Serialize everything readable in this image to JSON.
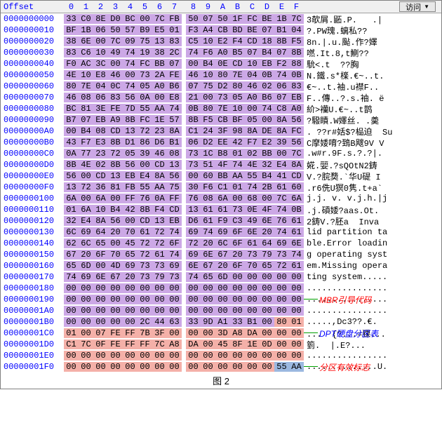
{
  "header": {
    "offset_label": "Offset",
    "cols": [
      "0",
      "1",
      "2",
      "3",
      "4",
      "5",
      "6",
      "7",
      "8",
      "9",
      "A",
      "B",
      "C",
      "D",
      "E",
      "F"
    ],
    "visit_label": "访问"
  },
  "colors": {
    "purple": "#cca8e6",
    "pink": "#f4b0a8",
    "blue": "#9bb8e0"
  },
  "annotations": {
    "a1": {
      "text": "MBR引导代码",
      "color": "#ff0000"
    },
    "a2": {
      "text": "DPT硬盘分区表",
      "color": "#0000ff"
    },
    "a3": {
      "text": "分区有效标志",
      "color": "#ff0000"
    }
  },
  "caption": "图 2",
  "rows": [
    {
      "o": "0000000000",
      "h": [
        "33",
        "C0",
        "8E",
        "D0",
        "BC",
        "00",
        "7C",
        "FB",
        "50",
        "07",
        "50",
        "1F",
        "FC",
        "BE",
        "1B",
        "7C"
      ],
      "a": "3欹屑.鼫.P.   .|",
      "bg": "purple"
    },
    {
      "o": "0000000010",
      "h": [
        "BF",
        "1B",
        "06",
        "50",
        "57",
        "B9",
        "E5",
        "01",
        "F3",
        "A4",
        "CB",
        "BD",
        "BE",
        "07",
        "B1",
        "04"
      ],
      "a": "?.PW瑰.螭私??",
      "bg": "purple"
    },
    {
      "o": "0000000020",
      "h": [
        "38",
        "6E",
        "00",
        "7C",
        "09",
        "75",
        "13",
        "83",
        "C5",
        "10",
        "E2",
        "F4",
        "CD",
        "18",
        "8B",
        "F5"
      ],
      "a": "8n.|.u.颭.作?嬕",
      "bg": "purple"
    },
    {
      "o": "0000000030",
      "h": [
        "83",
        "C6",
        "10",
        "49",
        "74",
        "19",
        "38",
        "2C",
        "74",
        "F6",
        "A0",
        "B5",
        "07",
        "B4",
        "07",
        "8B"
      ],
      "a": "嘫.It.8,t鰂??",
      "bg": "purple"
    },
    {
      "o": "0000000040",
      "h": [
        "F0",
        "AC",
        "3C",
        "00",
        "74",
        "FC",
        "BB",
        "07",
        "00",
        "B4",
        "0E",
        "CD",
        "10",
        "EB",
        "F2",
        "88"
      ],
      "a": "馻<.t  ??胸",
      "bg": "purple"
    },
    {
      "o": "0000000050",
      "h": [
        "4E",
        "10",
        "E8",
        "46",
        "00",
        "73",
        "2A",
        "FE",
        "46",
        "10",
        "80",
        "7E",
        "04",
        "0B",
        "74",
        "0B"
      ],
      "a": "N.鐵.s*檪.€~..t.",
      "bg": "purple"
    },
    {
      "o": "0000000060",
      "h": [
        "80",
        "7E",
        "04",
        "0C",
        "74",
        "05",
        "A0",
        "B6",
        "07",
        "75",
        "D2",
        "80",
        "46",
        "02",
        "06",
        "83"
      ],
      "a": "€~..t.袖.u襟F..",
      "bg": "purple"
    },
    {
      "o": "0000000070",
      "h": [
        "46",
        "08",
        "06",
        "83",
        "56",
        "0A",
        "00",
        "E8",
        "21",
        "00",
        "73",
        "05",
        "A0",
        "B6",
        "07",
        "EB"
      ],
      "a": "F..傳..?.s.袖. ë",
      "bg": "purple"
    },
    {
      "o": "0000000080",
      "h": [
        "BC",
        "81",
        "3E",
        "FE",
        "7D",
        "55",
        "AA",
        "74",
        "0B",
        "80",
        "7E",
        "10",
        "00",
        "74",
        "C8",
        "A0"
      ],
      "a": "紒>襽U.€~..t鹊",
      "bg": "purple"
    },
    {
      "o": "0000000090",
      "h": [
        "B7",
        "07",
        "EB",
        "A9",
        "8B",
        "FC",
        "1E",
        "57",
        "8B",
        "F5",
        "CB",
        "BF",
        "05",
        "00",
        "8A",
        "56"
      ],
      "a": "?驋瞔.W嬕丝. .羮",
      "bg": "purple"
    },
    {
      "o": "00000000A0",
      "h": [
        "00",
        "B4",
        "08",
        "CD",
        "13",
        "72",
        "23",
        "8A",
        "C1",
        "24",
        "3F",
        "98",
        "8A",
        "DE",
        "8A",
        "FC"
      ],
      "a": ". ??r#姡$?榀迫  Su",
      "bg": "purple"
    },
    {
      "o": "00000000B0",
      "h": [
        "43",
        "F7",
        "E3",
        "8B",
        "D1",
        "86",
        "D6",
        "B1",
        "06",
        "D2",
        "EE",
        "42",
        "F7",
        "E2",
        "39",
        "56"
      ],
      "a": "C摩婑唷?鵄B飕9V V",
      "bg": "purple"
    },
    {
      "o": "00000000C0",
      "h": [
        "0A",
        "77",
        "23",
        "72",
        "05",
        "39",
        "46",
        "08",
        "73",
        "1C",
        "B8",
        "01",
        "02",
        "BB",
        "00",
        "7C"
      ],
      "a": ".w#r.9F.s.?.?|.",
      "bg": "purple"
    },
    {
      "o": "00000000D0",
      "h": [
        "8B",
        "4E",
        "02",
        "8B",
        "56",
        "00",
        "CD",
        "13",
        "73",
        "51",
        "4F",
        "74",
        "4E",
        "32",
        "E4",
        "8A"
      ],
      "a": "婲.婯.?sQOtN2鋳",
      "bg": "purple"
    },
    {
      "o": "00000000E0",
      "h": [
        "56",
        "00",
        "CD",
        "13",
        "EB",
        "E4",
        "8A",
        "56",
        "00",
        "60",
        "BB",
        "AA",
        "55",
        "B4",
        "41",
        "CD"
      ],
      "a": "V.?脘奦.`华U碮 I",
      "bg": "purple"
    },
    {
      "o": "00000000F0",
      "h": [
        "13",
        "72",
        "36",
        "81",
        "FB",
        "55",
        "AA",
        "75",
        "30",
        "F6",
        "C1",
        "01",
        "74",
        "2B",
        "61",
        "60"
      ],
      "a": ".r6侁U猽0隽.t+a`",
      "bg": "purple"
    },
    {
      "o": "0000000100",
      "h": [
        "6A",
        "00",
        "6A",
        "00",
        "FF",
        "76",
        "0A",
        "FF",
        "76",
        "08",
        "6A",
        "00",
        "68",
        "00",
        "7C",
        "6A"
      ],
      "a": "j.j. v. v.j.h.|j",
      "bg": "purple"
    },
    {
      "o": "0000000110",
      "h": [
        "01",
        "6A",
        "10",
        "B4",
        "42",
        "8B",
        "F4",
        "CD",
        "13",
        "61",
        "61",
        "73",
        "0E",
        "4F",
        "74",
        "0B"
      ],
      "a": ".j.碽婑?aas.Ot.",
      "bg": "purple"
    },
    {
      "o": "0000000120",
      "h": [
        "32",
        "E4",
        "8A",
        "56",
        "00",
        "CD",
        "13",
        "EB",
        "D6",
        "61",
        "F9",
        "C3",
        "49",
        "6E",
        "76",
        "61"
      ],
      "a": "2鋳V.?胚a  Inva",
      "bg": "purple"
    },
    {
      "o": "0000000130",
      "h": [
        "6C",
        "69",
        "64",
        "20",
        "70",
        "61",
        "72",
        "74",
        "69",
        "74",
        "69",
        "6F",
        "6E",
        "20",
        "74",
        "61"
      ],
      "a": "lid partition ta",
      "bg": "purple"
    },
    {
      "o": "0000000140",
      "h": [
        "62",
        "6C",
        "65",
        "00",
        "45",
        "72",
        "72",
        "6F",
        "72",
        "20",
        "6C",
        "6F",
        "61",
        "64",
        "69",
        "6E"
      ],
      "a": "ble.Error loadin",
      "bg": "purple"
    },
    {
      "o": "0000000150",
      "h": [
        "67",
        "20",
        "6F",
        "70",
        "65",
        "72",
        "61",
        "74",
        "69",
        "6E",
        "67",
        "20",
        "73",
        "79",
        "73",
        "74"
      ],
      "a": "g operating syst",
      "bg": "purple"
    },
    {
      "o": "0000000160",
      "h": [
        "65",
        "6D",
        "00",
        "4D",
        "69",
        "73",
        "73",
        "69",
        "6E",
        "67",
        "20",
        "6F",
        "70",
        "65",
        "72",
        "61"
      ],
      "a": "em.Missing opera",
      "bg": "purple"
    },
    {
      "o": "0000000170",
      "h": [
        "74",
        "69",
        "6E",
        "67",
        "20",
        "73",
        "79",
        "73",
        "74",
        "65",
        "6D",
        "00",
        "00",
        "00",
        "00",
        "00"
      ],
      "a": "ting system.....",
      "bg": "purple"
    },
    {
      "o": "0000000180",
      "h": [
        "00",
        "00",
        "00",
        "00",
        "00",
        "00",
        "00",
        "00",
        "00",
        "00",
        "00",
        "00",
        "00",
        "00",
        "00",
        "00"
      ],
      "a": "................",
      "bg": "purple"
    },
    {
      "o": "0000000190",
      "h": [
        "00",
        "00",
        "00",
        "00",
        "00",
        "00",
        "00",
        "00",
        "00",
        "00",
        "00",
        "00",
        "00",
        "00",
        "00",
        "00"
      ],
      "a": "................",
      "bg": "purple"
    },
    {
      "o": "00000001A0",
      "h": [
        "00",
        "00",
        "00",
        "00",
        "00",
        "00",
        "00",
        "00",
        "00",
        "00",
        "00",
        "00",
        "00",
        "00",
        "00",
        "00"
      ],
      "a": "................",
      "bg": "purple"
    },
    {
      "o": "00000001B0",
      "h": [
        "00",
        "00",
        "00",
        "00",
        "00",
        "2C",
        "44",
        "63",
        "33",
        "9D",
        "A1",
        "33",
        "B1",
        "00"
      ],
      "a": ".....,Dc3??.€.",
      "bg": "purple",
      "tail": [
        "80",
        "01"
      ],
      "tailbg": "pink"
    },
    {
      "o": "00000001C0",
      "h": [
        "01",
        "00",
        "07",
        "FE",
        "FF",
        "7B",
        "3F",
        "00",
        "00",
        "00",
        "3D",
        "A8",
        "DA",
        "00",
        "00",
        "00"
      ],
      "a": "...  {?...=猓...",
      "bg": "pink"
    },
    {
      "o": "00000001D0",
      "h": [
        "C1",
        "7C",
        "0F",
        "FE",
        "FF",
        "FF",
        "7C",
        "A8",
        "DA",
        "00",
        "45",
        "8F",
        "1E",
        "0D",
        "00",
        "00"
      ],
      "a": "箌.  |.E?...",
      "bg": "pink"
    },
    {
      "o": "00000001E0",
      "h": [
        "00",
        "00",
        "00",
        "00",
        "00",
        "00",
        "00",
        "00",
        "00",
        "00",
        "00",
        "00",
        "00",
        "00",
        "00",
        "00"
      ],
      "a": "................",
      "bg": "pink"
    },
    {
      "o": "00000001F0",
      "h": [
        "00",
        "00",
        "00",
        "00",
        "00",
        "00",
        "00",
        "00",
        "00",
        "00",
        "00",
        "00",
        "00",
        "00"
      ],
      "a": "..............U.",
      "bg": "pink",
      "tail": [
        "55",
        "AA"
      ],
      "tailbg": "blue"
    }
  ]
}
